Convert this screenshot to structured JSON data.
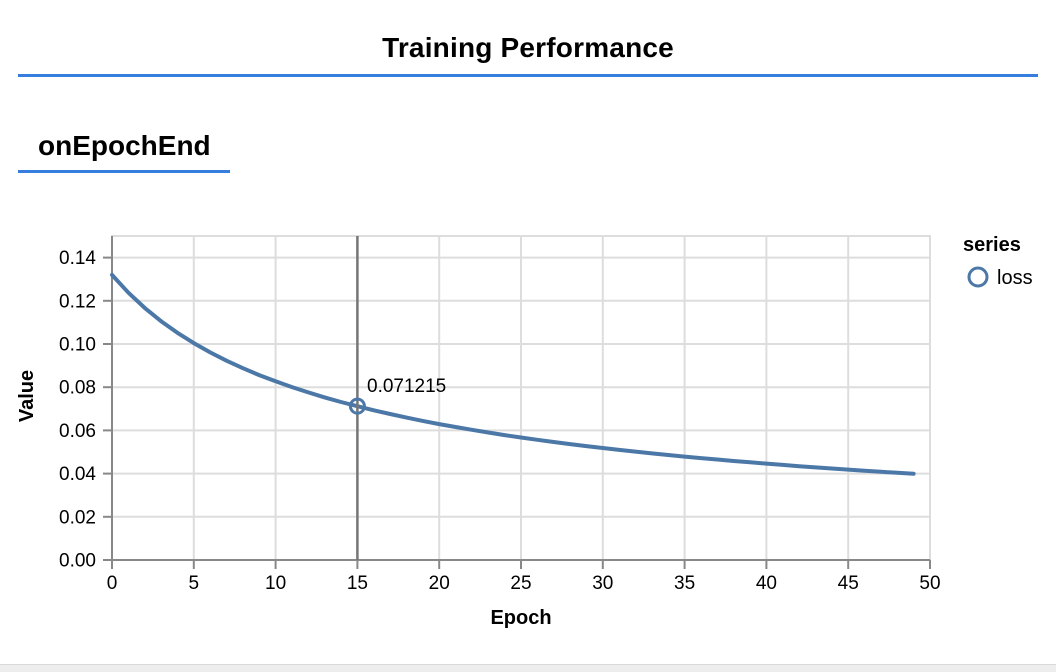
{
  "page": {
    "title": "Training Performance",
    "section_title": "onEpochEnd"
  },
  "colors": {
    "rule_blue": "#357edd",
    "series_blue": "#4c78a8",
    "grid_gray": "#dddddd",
    "axis_gray": "#888888",
    "crosshair_gray": "#767676",
    "label_black": "#000000"
  },
  "chart_data": {
    "type": "line",
    "xlabel": "Epoch",
    "ylabel": "Value",
    "xlim": [
      0,
      50
    ],
    "ylim": [
      0,
      0.15
    ],
    "x_ticks": [
      0,
      5,
      10,
      15,
      20,
      25,
      30,
      35,
      40,
      45,
      50
    ],
    "y_ticks": [
      0.0,
      0.02,
      0.04,
      0.06,
      0.08,
      0.1,
      0.12,
      0.14
    ],
    "grid": true,
    "legend": {
      "title": "series",
      "position": "right",
      "entries": [
        {
          "label": "loss",
          "color": "#4c78a8",
          "symbol": "circle"
        }
      ]
    },
    "series": [
      {
        "name": "loss",
        "x": [
          0,
          1,
          2,
          3,
          4,
          5,
          6,
          7,
          8,
          9,
          10,
          11,
          12,
          13,
          14,
          15,
          16,
          17,
          18,
          19,
          20,
          21,
          22,
          23,
          24,
          25,
          26,
          27,
          28,
          29,
          30,
          31,
          32,
          33,
          34,
          35,
          36,
          37,
          38,
          39,
          40,
          41,
          42,
          43,
          44,
          45,
          46,
          47,
          48,
          49
        ],
        "values": [
          0.131977,
          0.12374,
          0.116695,
          0.110565,
          0.105177,
          0.1004,
          0.096129,
          0.092281,
          0.088793,
          0.085617,
          0.08271,
          0.08004,
          0.077574,
          0.07529,
          0.073154,
          0.071215,
          0.069308,
          0.067571,
          0.065933,
          0.064393,
          0.062938,
          0.061562,
          0.060257,
          0.059018,
          0.057846,
          0.056728,
          0.055663,
          0.054645,
          0.053672,
          0.052738,
          0.051846,
          0.050988,
          0.050164,
          0.049373,
          0.048611,
          0.047888,
          0.047187,
          0.046508,
          0.045856,
          0.045223,
          0.044611,
          0.044018,
          0.043446,
          0.042891,
          0.042354,
          0.041832,
          0.041326,
          0.040836,
          0.040359,
          0.039896
        ]
      }
    ],
    "highlight": {
      "x": 15,
      "value": 0.071215,
      "label": "0.071215"
    }
  }
}
